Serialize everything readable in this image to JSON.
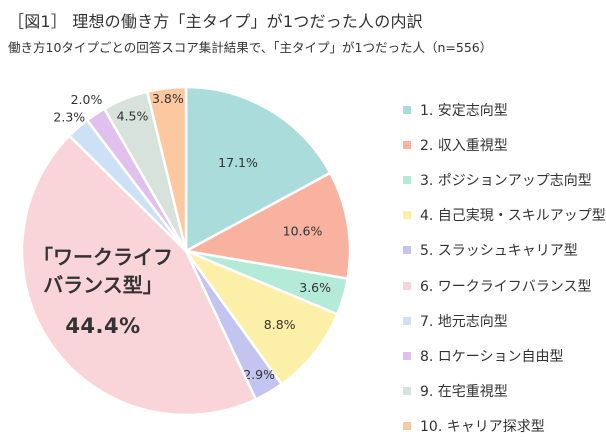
{
  "header": {
    "title": "［図1］ 理想の働き方「主タイプ」が1つだった人の内訳",
    "subtitle": "働き方10タイプごとの回答スコア集計結果で、「主タイプ」が1つだった人（n=556）"
  },
  "callout": {
    "line1": "「ワークライフ",
    "line2": "バランス型」",
    "value": "44.4%"
  },
  "chart_data": {
    "type": "pie",
    "title": "［図1］ 理想の働き方「主タイプ」が1つだった人の内訳",
    "subtitle": "働き方10タイプごとの回答スコア集計結果で、「主タイプ」が1つだった人（n=556）",
    "n": 556,
    "unit": "%",
    "legend_position": "right",
    "start": "top, clockwise",
    "slices": [
      {
        "label": "1. 安定志向型",
        "value": 17.1,
        "value_label": "17.1%",
        "color": "#a9dcdb"
      },
      {
        "label": "2. 収入重視型",
        "value": 10.6,
        "value_label": "10.6%",
        "color": "#f9b29f"
      },
      {
        "label": "3. ポジションアップ志向型",
        "value": 3.6,
        "value_label": "3.6%",
        "color": "#b3ead8"
      },
      {
        "label": "4. 自己実現・スキルアップ型",
        "value": 8.8,
        "value_label": "8.8%",
        "color": "#fcf0a8"
      },
      {
        "label": "5. スラッシュキャリア型",
        "value": 2.9,
        "value_label": "2.9%",
        "color": "#c3c4ef"
      },
      {
        "label": "6. ワークライフバランス型",
        "value": 44.4,
        "value_label": "44.4%",
        "color": "#f9d4d9"
      },
      {
        "label": "7. 地元志向型",
        "value": 2.3,
        "value_label": "2.3%",
        "color": "#cde0f6"
      },
      {
        "label": "8. ロケーション自由型",
        "value": 2.0,
        "value_label": "2.0%",
        "color": "#e0c0ec"
      },
      {
        "label": "9. 在宅重視型",
        "value": 4.5,
        "value_label": "4.5%",
        "color": "#d8e2dc"
      },
      {
        "label": "10. キャリア探求型",
        "value": 3.8,
        "value_label": "3.8%",
        "color": "#fbc8a0"
      }
    ]
  }
}
